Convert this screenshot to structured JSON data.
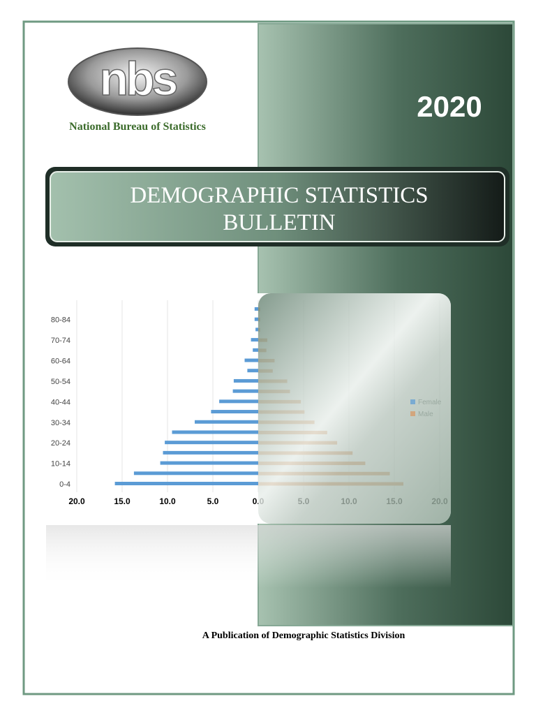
{
  "logo_text": "nbs",
  "organization": "National Bureau of Statistics",
  "year": "2020",
  "title_lines": [
    "DEMOGRAPHIC STATISTICS",
    "BULLETIN"
  ],
  "chart_data": {
    "type": "pyramid",
    "categories": [
      "0-4",
      null,
      "10-14",
      null,
      "20-24",
      null,
      "30-34",
      null,
      "40-44",
      null,
      "50-54",
      null,
      "60-64",
      null,
      "70-74",
      null,
      "80-84",
      null
    ],
    "series": [
      {
        "name": "Female",
        "color": "#5b9bd5",
        "values": [
          -15.8,
          -13.7,
          -10.8,
          -10.5,
          -10.3,
          -9.5,
          -7.0,
          -5.2,
          -4.3,
          -2.8,
          -2.7,
          -1.2,
          -1.5,
          -0.6,
          -0.8,
          -0.3,
          -0.4,
          -0.4
        ]
      },
      {
        "name": "Male",
        "color": "#d9955f",
        "values": [
          16.0,
          14.5,
          11.8,
          10.4,
          8.7,
          7.6,
          6.2,
          5.1,
          4.7,
          3.5,
          3.2,
          1.6,
          1.8,
          0.9,
          1.0,
          0.2,
          0.2,
          0.2
        ]
      }
    ],
    "xlim": [
      -20,
      20
    ],
    "xticks": [
      {
        "value": -20,
        "label": "20.0"
      },
      {
        "value": -15,
        "label": "15.0"
      },
      {
        "value": -10,
        "label": "10.0"
      },
      {
        "value": -5,
        "label": "5.0"
      },
      {
        "value": 0,
        "label": "0.0"
      },
      {
        "value": 5,
        "label": "5.0"
      },
      {
        "value": 10,
        "label": "10.0"
      },
      {
        "value": 15,
        "label": "15.0"
      },
      {
        "value": 20,
        "label": "20.0"
      }
    ],
    "grid": true,
    "legend": "right"
  },
  "footer": "A Publication of Demographic Statistics Division"
}
